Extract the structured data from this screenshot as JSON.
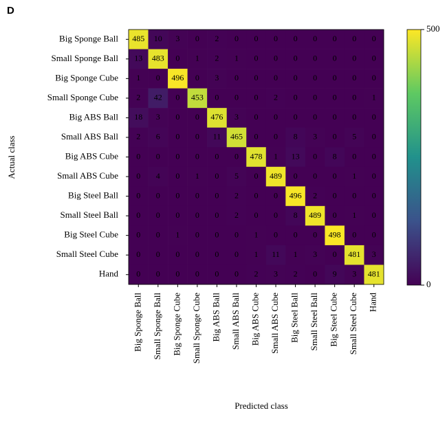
{
  "panel_label": "D",
  "chart_data": {
    "type": "heatmap",
    "xlabel": "Predicted class",
    "ylabel": "Actual class",
    "x_categories": [
      "Big Sponge Ball",
      "Small Sponge Ball",
      "Big Sponge Cube",
      "Small Sponge Cube",
      "Big ABS Ball",
      "Small ABS Ball",
      "Big ABS Cube",
      "Small ABS Cube",
      "Big Steel Ball",
      "Small Steel Ball",
      "Big Steel Cube",
      "Small Steel Cube",
      "Hand"
    ],
    "y_categories": [
      "Big Sponge Ball",
      "Small Sponge Ball",
      "Big Sponge Cube",
      "Small Sponge Cube",
      "Big ABS Ball",
      "Small ABS Ball",
      "Big ABS Cube",
      "Small ABS Cube",
      "Big Steel Ball",
      "Small Steel Ball",
      "Big Steel Cube",
      "Small Steel Cube",
      "Hand"
    ],
    "matrix": [
      [
        485,
        10,
        3,
        0,
        2,
        0,
        0,
        0,
        0,
        0,
        0,
        0,
        0
      ],
      [
        13,
        483,
        0,
        1,
        2,
        1,
        0,
        0,
        0,
        0,
        0,
        0,
        0
      ],
      [
        1,
        0,
        496,
        0,
        3,
        0,
        0,
        0,
        0,
        0,
        0,
        0,
        0
      ],
      [
        2,
        42,
        0,
        453,
        0,
        0,
        0,
        2,
        0,
        0,
        0,
        0,
        1
      ],
      [
        18,
        3,
        0,
        0,
        476,
        3,
        0,
        0,
        0,
        0,
        0,
        0,
        0
      ],
      [
        2,
        6,
        0,
        0,
        11,
        465,
        0,
        0,
        8,
        3,
        0,
        5,
        0
      ],
      [
        0,
        0,
        0,
        0,
        0,
        0,
        478,
        1,
        13,
        0,
        8,
        0,
        0
      ],
      [
        0,
        4,
        0,
        1,
        0,
        5,
        0,
        489,
        0,
        0,
        0,
        1,
        0
      ],
      [
        0,
        0,
        0,
        0,
        0,
        2,
        0,
        0,
        496,
        2,
        0,
        0,
        0
      ],
      [
        0,
        0,
        0,
        0,
        0,
        2,
        0,
        0,
        8,
        489,
        0,
        1,
        0
      ],
      [
        0,
        0,
        1,
        0,
        0,
        0,
        1,
        0,
        0,
        0,
        498,
        0,
        0
      ],
      [
        0,
        0,
        0,
        0,
        0,
        0,
        1,
        11,
        1,
        3,
        0,
        481,
        3
      ],
      [
        0,
        0,
        0,
        0,
        0,
        0,
        2,
        3,
        2,
        0,
        9,
        3,
        481
      ]
    ],
    "colormap": "viridis",
    "annotation_color": "#ff2d2d",
    "clim": [
      0,
      500
    ],
    "cticks": [
      0,
      500
    ]
  }
}
